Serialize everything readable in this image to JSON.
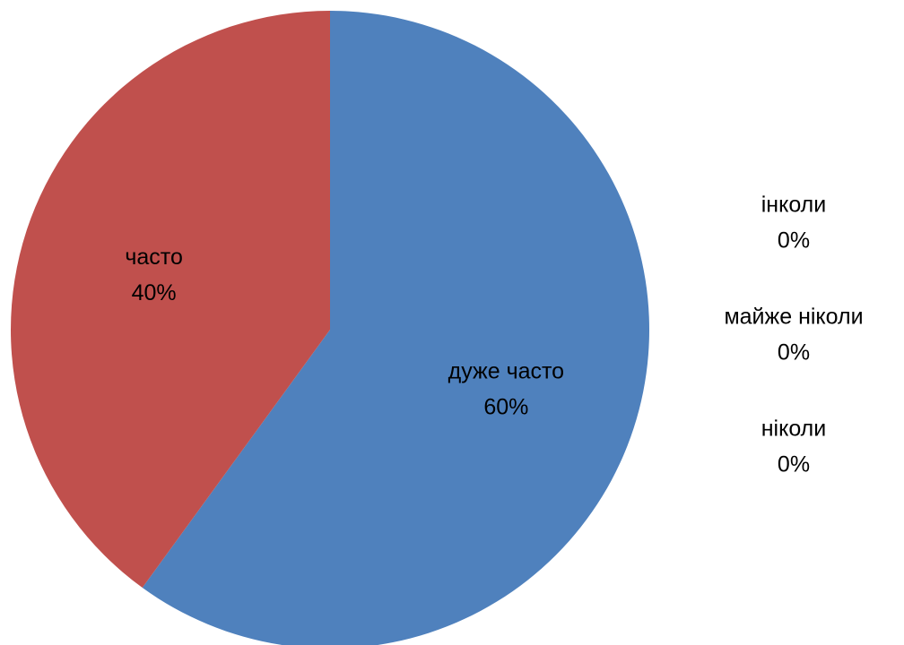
{
  "chart_data": {
    "type": "pie",
    "title": "",
    "legend": "none",
    "slices": [
      {
        "name": "дуже часто",
        "value": 60,
        "value_label": "60%",
        "color": "#4F81BD"
      },
      {
        "name": "часто",
        "value": 40,
        "value_label": "40%",
        "color": "#C0504D"
      },
      {
        "name": "інколи",
        "value": 0,
        "value_label": "0%",
        "color": "#9BBB59"
      },
      {
        "name": "майже ніколи",
        "value": 0,
        "value_label": "0%",
        "color": "#8064A2"
      },
      {
        "name": "ніколи",
        "value": 0,
        "value_label": "0%",
        "color": "#4BACC6"
      }
    ]
  }
}
